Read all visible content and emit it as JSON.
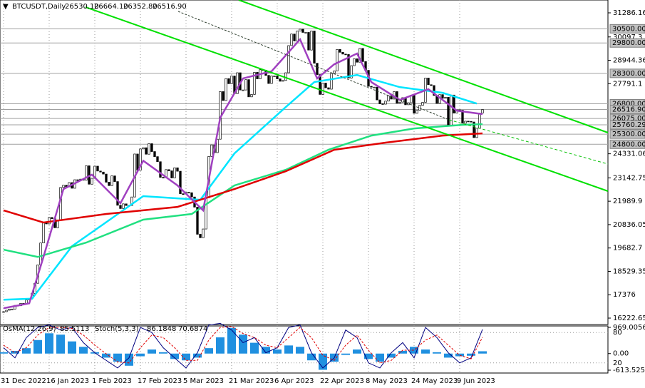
{
  "chart_data": {
    "type": "candlestick",
    "title": "BTCUSDT,Daily",
    "header_quote": [
      "26530.10",
      "26664.10",
      "26352.80",
      "26516.90"
    ],
    "close": [
      16540,
      16610,
      16670,
      16670,
      16850,
      16830,
      16950,
      16940,
      17120,
      17190,
      17440,
      17940,
      18850,
      19930,
      20950,
      20870,
      21190,
      21130,
      20680,
      21070,
      22670,
      22780,
      22700,
      22910,
      22630,
      23050,
      23010,
      23080,
      23030,
      23740,
      22830,
      23120,
      23720,
      23480,
      23430,
      23330,
      22930,
      22760,
      23240,
      22960,
      21790,
      21630,
      21860,
      21780,
      21780,
      22200,
      24320,
      23520,
      24570,
      24630,
      24310,
      24830,
      24440,
      24190,
      23940,
      23170,
      23150,
      23550,
      23490,
      23140,
      23640,
      23470,
      22360,
      22350,
      22430,
      22410,
      22200,
      21700,
      20360,
      20190,
      20620,
      22160,
      24200,
      24770,
      24390,
      25050,
      27400,
      26960,
      28040,
      27790,
      28170,
      27300,
      28330,
      27480,
      27480,
      27990,
      27140,
      27260,
      28350,
      28030,
      28480,
      28460,
      28200,
      27800,
      28170,
      28170,
      28030,
      27910,
      27950,
      28330,
      29670,
      30240,
      29900,
      30390,
      30480,
      30320,
      30320,
      29450,
      30390,
      28800,
      28240,
      27260,
      27820,
      27590,
      27520,
      28300,
      28420,
      29480,
      29340,
      29250,
      29230,
      28070,
      28680,
      29020,
      28850,
      29530,
      28880,
      28450,
      27660,
      27620,
      27620,
      26990,
      26800,
      26780,
      26930,
      27190,
      27030,
      27400,
      26830,
      26880,
      27100,
      26750,
      26850,
      27220,
      26330,
      26480,
      26720,
      26870,
      28070,
      27740,
      27700,
      27210,
      26820,
      27250,
      27070,
      27120,
      25730,
      27230,
      26340,
      26500,
      26480,
      25840,
      25940,
      25930,
      25900,
      25130,
      25590,
      26340,
      26517
    ],
    "xlim": [
      -1.25,
      212
    ],
    "xticks": [
      {
        "value": 0,
        "label": "31 Dec 2022"
      },
      {
        "value": 16,
        "label": "16 Jan 2023"
      },
      {
        "value": 32,
        "label": "1 Feb 2023"
      },
      {
        "value": 48,
        "label": "17 Feb 2023"
      },
      {
        "value": 64,
        "label": "5 Mar 2023"
      },
      {
        "value": 80,
        "label": "21 Mar 2023"
      },
      {
        "value": 96,
        "label": "6 Apr 2023"
      },
      {
        "value": 112,
        "label": "22 Apr 2023"
      },
      {
        "value": 128,
        "label": "8 May 2023"
      },
      {
        "value": 144,
        "label": "24 May 2023"
      },
      {
        "value": 160,
        "label": "9 Jun 2023"
      }
    ],
    "ylim": [
      15906,
      31920
    ],
    "yticks": [
      31286.16,
      30097.3,
      28944.36,
      27791.1,
      24331.06,
      23142.75,
      21989.9,
      20836.05,
      19682.7,
      18529.35,
      17376,
      16222.65
    ],
    "levels": [
      {
        "value": 30500,
        "label": "30500.00"
      },
      {
        "value": 29800,
        "label": "29800.00"
      },
      {
        "value": 28300,
        "label": "28300.00"
      },
      {
        "value": 26800,
        "label": "26800.00"
      },
      {
        "value": 26516.9,
        "label": "26516.90"
      },
      {
        "value": 26075,
        "label": "26075.00"
      },
      25760.29,
      {
        "value": 25300,
        "label": "25300.00"
      },
      {
        "value": 24800,
        "label": "24800.00"
      }
    ],
    "series": [
      {
        "color": "#00e5ff",
        "x": [
          0,
          10,
          24,
          49,
          69,
          81,
          99,
          109,
          124,
          139,
          154,
          166
        ],
        "values": [
          17130,
          17180,
          19770,
          22240,
          22060,
          24350,
          26640,
          27870,
          28220,
          27620,
          27340,
          26810
        ]
      },
      {
        "color": "#20e080",
        "x": [
          0,
          12,
          29,
          49,
          66,
          81,
          99,
          114,
          129,
          144,
          161,
          168
        ],
        "values": [
          19600,
          19240,
          19950,
          21080,
          21360,
          22770,
          23540,
          24530,
          25230,
          25580,
          25760,
          25790
        ]
      },
      {
        "color": "#e00000",
        "x": [
          0,
          14,
          36,
          61,
          81,
          99,
          116,
          134,
          154,
          168
        ],
        "values": [
          21540,
          20940,
          21360,
          21710,
          22590,
          23470,
          24530,
          24880,
          25230,
          25340
        ]
      },
      {
        "color": "#a040c0",
        "x": [
          0,
          9,
          14,
          21,
          31,
          41,
          49,
          61,
          70,
          76,
          84,
          94,
          104,
          110,
          116,
          124,
          129,
          139,
          149,
          159,
          168
        ],
        "values": [
          16710,
          16950,
          19240,
          22590,
          23300,
          21890,
          23990,
          22770,
          21540,
          26110,
          28050,
          28400,
          29980,
          28050,
          28750,
          29280,
          27870,
          26990,
          27520,
          26460,
          26290
        ]
      }
    ],
    "oscillator": {
      "osma_name": "OsMA(12,26,9)",
      "stoch_name": "Stoch(5,3,3)",
      "x": [
        0,
        4,
        8,
        12,
        16,
        20,
        24,
        28,
        32,
        36,
        40,
        44,
        48,
        52,
        56,
        60,
        64,
        68,
        72,
        76,
        80,
        84,
        88,
        92,
        96,
        100,
        104,
        108,
        112,
        116,
        120,
        124,
        128,
        132,
        136,
        140,
        144,
        148,
        152,
        156,
        160,
        164,
        168
      ],
      "osma": [
        50,
        100,
        200,
        500,
        750,
        700,
        450,
        250,
        50,
        -150,
        -300,
        -450,
        -100,
        150,
        50,
        -200,
        -250,
        -150,
        200,
        600,
        950,
        700,
        400,
        250,
        150,
        300,
        250,
        -250,
        -600,
        -300,
        -50,
        150,
        -200,
        -300,
        -150,
        100,
        250,
        150,
        50,
        -150,
        -100,
        -80,
        85.5113
      ],
      "osma_color": "#2090e0",
      "stoch_main": [
        50,
        30,
        70,
        90,
        95,
        85,
        90,
        60,
        40,
        25,
        10,
        30,
        90,
        80,
        50,
        30,
        10,
        40,
        95,
        98,
        85,
        60,
        70,
        40,
        50,
        90,
        95,
        40,
        10,
        30,
        85,
        70,
        20,
        10,
        40,
        60,
        30,
        90,
        70,
        40,
        20,
        30,
        86.1848
      ],
      "stoch_signal": [
        55,
        40,
        50,
        75,
        90,
        90,
        88,
        75,
        55,
        38,
        22,
        20,
        50,
        75,
        70,
        50,
        25,
        25,
        65,
        90,
        92,
        78,
        70,
        55,
        50,
        70,
        90,
        70,
        35,
        25,
        55,
        75,
        45,
        20,
        25,
        45,
        45,
        65,
        75,
        55,
        35,
        28,
        70.6874
      ],
      "main_color": "#000080",
      "signal_color": "#e00000",
      "ylim": [
        -613.5257,
        969.0056
      ],
      "yticks": [
        969.0056,
        {
          "value": 0,
          "label": "0.00"
        },
        -613.5257
      ],
      "stoch_ylim": [
        0,
        100
      ],
      "stoch_ticks": [
        80,
        20
      ]
    }
  }
}
